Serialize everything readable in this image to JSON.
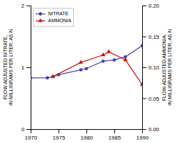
{
  "chart_data": {
    "type": "line",
    "ylabel": "FLOW-ADJUSTED NITRATE,\nIN MILLIGRAMS PER LITER, AS N",
    "y2label": "FLOW-ADJUSTED AMMONIA,\nIN MILLIGRAMS PER LITER, AS N",
    "series": [
      {
        "name": "NITRATE",
        "color": "#4444aa",
        "marker": "circle",
        "x": [
          1970,
          1973,
          1974,
          1975,
          1979,
          1980,
          1983,
          1985,
          1987,
          1990
        ],
        "values": [
          0.83,
          0.83,
          0.85,
          0.88,
          0.96,
          0.98,
          1.1,
          1.12,
          1.17,
          1.35
        ]
      },
      {
        "name": "AMMONIA",
        "color": "#cc1111",
        "marker": "triangle",
        "axis": "y2",
        "x": [
          1974,
          1979,
          1983,
          1984,
          1987,
          1990
        ],
        "values": [
          0.085,
          0.108,
          0.12,
          0.125,
          0.112,
          0.072
        ]
      }
    ],
    "xlim": [
      1970,
      1990
    ],
    "xticks": [
      1970,
      1975,
      1980,
      1985,
      1990
    ],
    "ylim": [
      0,
      2
    ],
    "yticks": [
      0,
      1,
      2
    ],
    "y2lim": [
      0,
      0.2
    ],
    "y2ticks": [
      {
        "value": 0,
        "label": "0.00"
      },
      {
        "value": 0.05,
        "label": "0.05"
      },
      {
        "value": 0.1,
        "label": "0.10"
      },
      {
        "value": 0.15,
        "label": "0.15"
      },
      {
        "value": 0.2,
        "label": "0.20"
      }
    ],
    "legend": "upper left"
  }
}
